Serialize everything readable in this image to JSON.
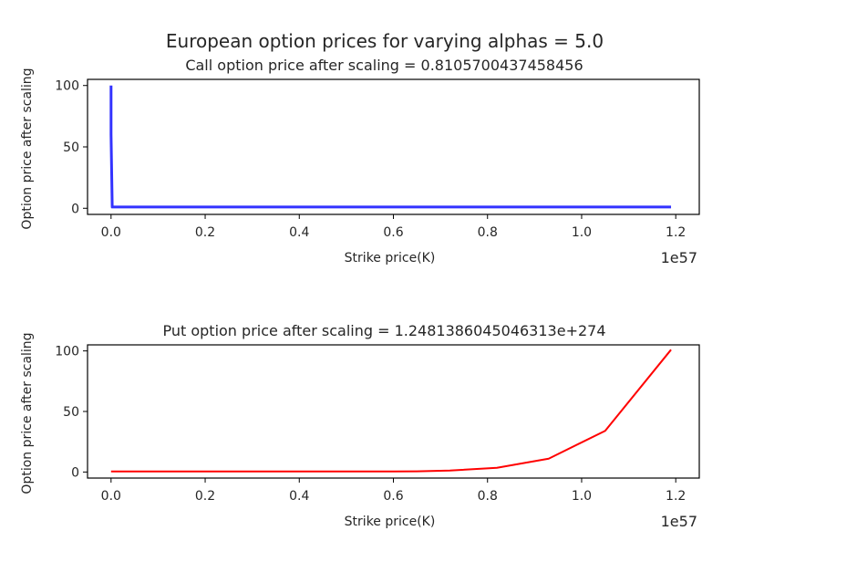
{
  "figure": {
    "suptitle": "European option prices for varying alphas = 5.0"
  },
  "chart_data": [
    {
      "type": "line",
      "title": "Call option price after scaling = 0.8105700437458456",
      "xlabel": "Strike price(K)",
      "ylabel": "Option price after scaling",
      "x_offset_label": "1e57",
      "xlim": [
        -0.05,
        1.25
      ],
      "ylim": [
        -5,
        105
      ],
      "xticks": [
        0.0,
        0.2,
        0.4,
        0.6,
        0.8,
        1.0,
        1.2
      ],
      "xtick_labels": [
        "0.0",
        "0.2",
        "0.4",
        "0.6",
        "0.8",
        "1.0",
        "1.2"
      ],
      "yticks": [
        0,
        50,
        100
      ],
      "ytick_labels": [
        "0",
        "50",
        "100"
      ],
      "series": [
        {
          "color": "#3333ff",
          "x": [
            0.0,
            0.0,
            0.0025,
            0.1,
            0.2,
            0.3,
            0.4,
            0.5,
            0.6,
            0.7,
            0.8,
            0.9,
            1.0,
            1.1,
            1.19
          ],
          "y": [
            100,
            60,
            1.0,
            1.0,
            1.0,
            1.0,
            1.0,
            1.0,
            1.0,
            1.0,
            1.0,
            1.0,
            1.0,
            1.0,
            1.0
          ]
        }
      ]
    },
    {
      "type": "line",
      "title": "Put option price after scaling = 1.2481386045046313e+274",
      "xlabel": "Strike price(K)",
      "ylabel": "Option price after scaling",
      "x_offset_label": "1e57",
      "xlim": [
        -0.05,
        1.25
      ],
      "ylim": [
        -5,
        105
      ],
      "xticks": [
        0.0,
        0.2,
        0.4,
        0.6,
        0.8,
        1.0,
        1.2
      ],
      "xtick_labels": [
        "0.0",
        "0.2",
        "0.4",
        "0.6",
        "0.8",
        "1.0",
        "1.2"
      ],
      "yticks": [
        0,
        50,
        100
      ],
      "ytick_labels": [
        "0",
        "50",
        "100"
      ],
      "series": [
        {
          "color": "#ff0000",
          "x": [
            0.0,
            0.1,
            0.2,
            0.3,
            0.4,
            0.5,
            0.6,
            0.65,
            0.72,
            0.82,
            0.93,
            1.05,
            1.19
          ],
          "y": [
            0.5,
            0.5,
            0.5,
            0.5,
            0.5,
            0.5,
            0.5,
            0.6,
            1.2,
            3.5,
            11,
            34,
            101
          ]
        }
      ]
    }
  ]
}
